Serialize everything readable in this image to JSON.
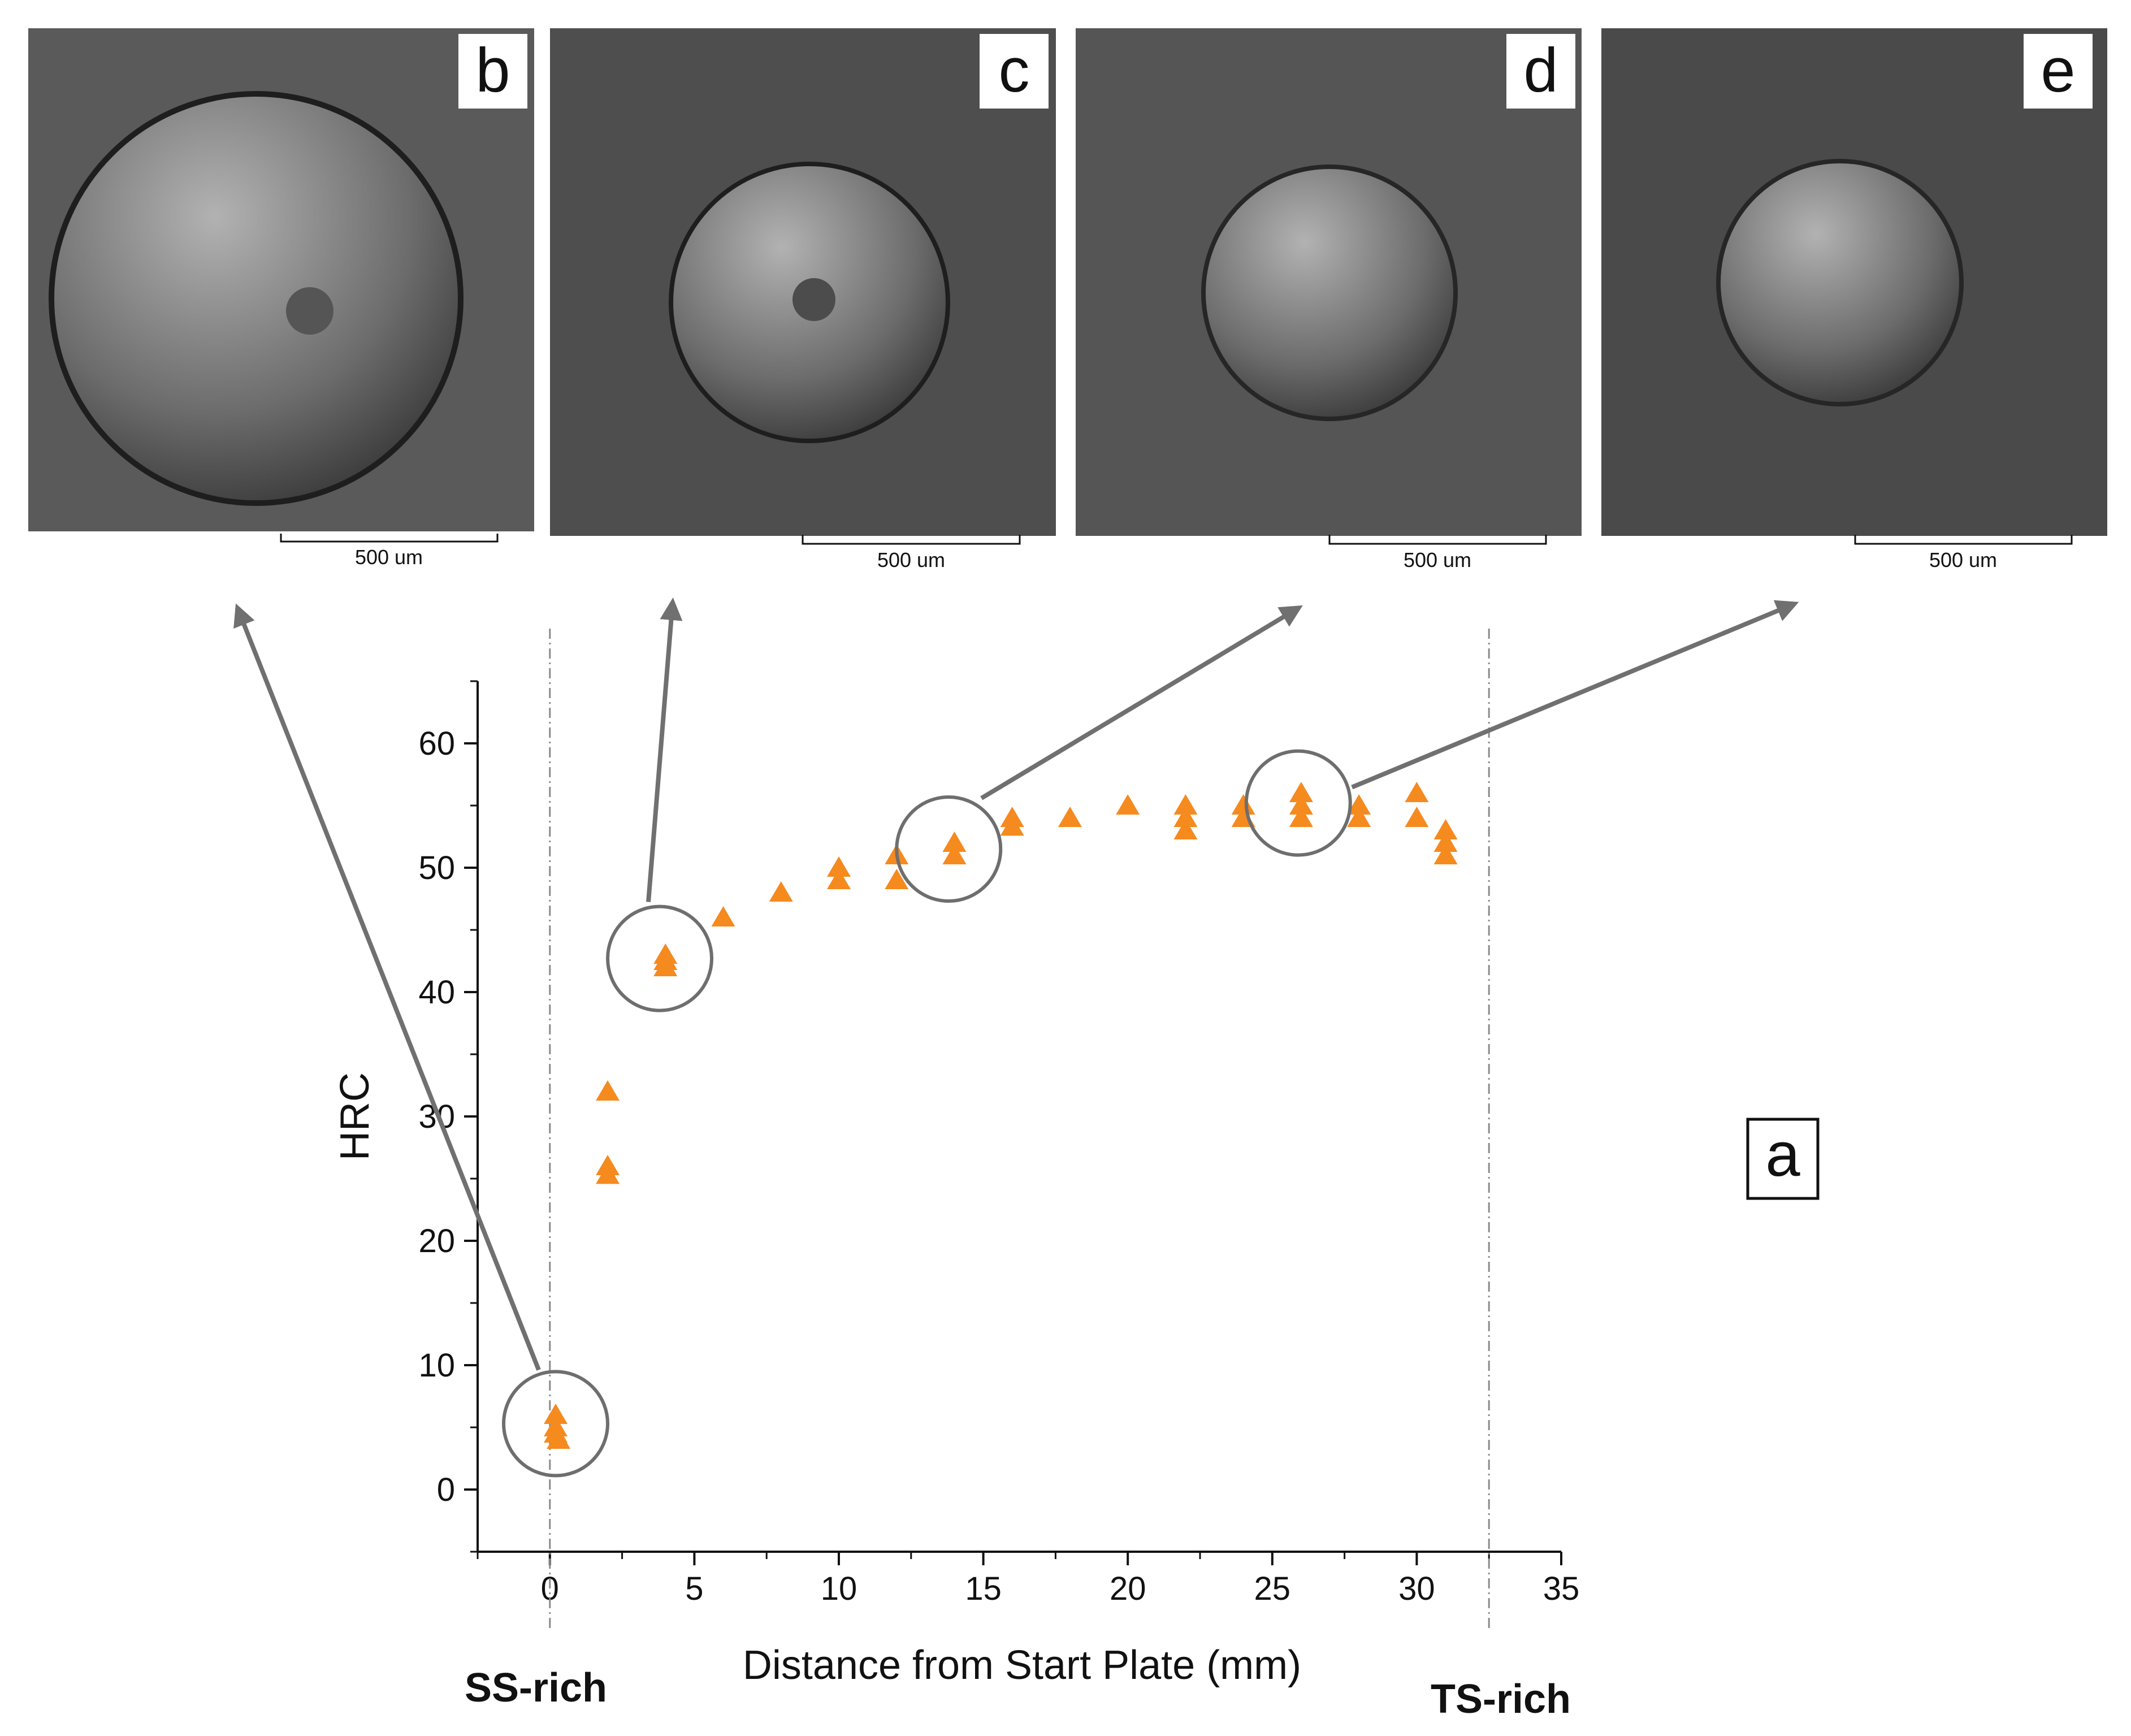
{
  "panels": [
    {
      "letter": "b",
      "scale_label": "500 um"
    },
    {
      "letter": "c",
      "scale_label": "500 um"
    },
    {
      "letter": "d",
      "scale_label": "500 um"
    },
    {
      "letter": "e",
      "scale_label": "500 um"
    }
  ],
  "chart_panel_letter": "a",
  "region_labels": {
    "left": "SS-rich",
    "right": "TS-rich"
  },
  "colors": {
    "marker": "#f58a1f",
    "arrow": "#707070",
    "circle": "#6e6e6e"
  },
  "chart_data": {
    "type": "scatter",
    "xlabel": "Distance from Start Plate (mm)",
    "ylabel": "HRC",
    "xlim": [
      -2.5,
      35
    ],
    "ylim": [
      -5,
      65
    ],
    "x_ticks": [
      "0",
      "5",
      "10",
      "15",
      "20",
      "25",
      "30",
      "35"
    ],
    "y_ticks": [
      "0",
      "10",
      "20",
      "30",
      "40",
      "50",
      "60"
    ],
    "marker": "triangle",
    "grid": false,
    "reference_lines_x": [
      0,
      32.5
    ],
    "points": [
      {
        "x": 0.2,
        "y": 6
      },
      {
        "x": 0.2,
        "y": 5
      },
      {
        "x": 0.2,
        "y": 4.5
      },
      {
        "x": 0.3,
        "y": 4
      },
      {
        "x": 2,
        "y": 32
      },
      {
        "x": 2,
        "y": 26
      },
      {
        "x": 2,
        "y": 25.3
      },
      {
        "x": 4,
        "y": 43
      },
      {
        "x": 4,
        "y": 42.5
      },
      {
        "x": 4,
        "y": 42
      },
      {
        "x": 6,
        "y": 46
      },
      {
        "x": 8,
        "y": 48
      },
      {
        "x": 10,
        "y": 50
      },
      {
        "x": 10,
        "y": 49
      },
      {
        "x": 12,
        "y": 51
      },
      {
        "x": 12,
        "y": 49
      },
      {
        "x": 14,
        "y": 52
      },
      {
        "x": 14,
        "y": 51
      },
      {
        "x": 16,
        "y": 54
      },
      {
        "x": 16,
        "y": 53.3
      },
      {
        "x": 18,
        "y": 54
      },
      {
        "x": 20,
        "y": 55
      },
      {
        "x": 22,
        "y": 55
      },
      {
        "x": 22,
        "y": 54
      },
      {
        "x": 22,
        "y": 53
      },
      {
        "x": 24,
        "y": 55
      },
      {
        "x": 24,
        "y": 54
      },
      {
        "x": 26,
        "y": 56
      },
      {
        "x": 26,
        "y": 55
      },
      {
        "x": 26,
        "y": 54
      },
      {
        "x": 28,
        "y": 55
      },
      {
        "x": 28,
        "y": 54
      },
      {
        "x": 30,
        "y": 56
      },
      {
        "x": 30,
        "y": 54
      },
      {
        "x": 31,
        "y": 53
      },
      {
        "x": 31,
        "y": 52
      },
      {
        "x": 31,
        "y": 51
      }
    ],
    "highlight_circles": [
      {
        "x": 0.2,
        "y": 5.3,
        "panel": "b"
      },
      {
        "x": 3.8,
        "y": 42.7,
        "panel": "c"
      },
      {
        "x": 13.8,
        "y": 51.5,
        "panel": "d"
      },
      {
        "x": 25.9,
        "y": 55.2,
        "panel": "e"
      }
    ]
  }
}
